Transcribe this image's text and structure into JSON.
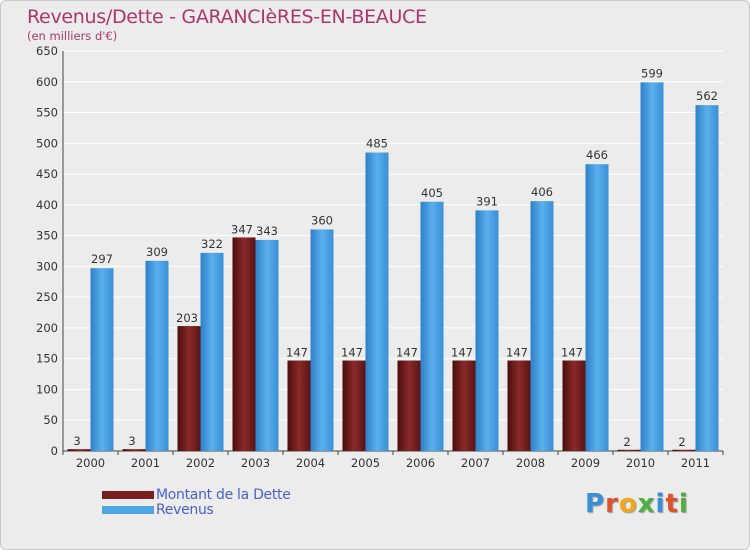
{
  "title": "Revenus/Dette - GARANCIèRES-EN-BEAUCE",
  "subtitle": "(en milliers d'€)",
  "logo": {
    "text": "Proxiti",
    "letter_colors": [
      "#3b8fd6",
      "#e0532a",
      "#f2a61a",
      "#4caf3e",
      "#3b8fd6",
      "#e0532a",
      "#4caf3e"
    ]
  },
  "colors": {
    "background": "#ececec",
    "debt": "#7a1f1f",
    "revenue": "#4fa6e6",
    "grid": "#ffffff",
    "axis": "#444444"
  },
  "chart_data": {
    "type": "bar",
    "title": "Revenus/Dette - GARANCIèRES-EN-BEAUCE",
    "subtitle": "(en milliers d'€)",
    "categories": [
      "2000",
      "2001",
      "2002",
      "2003",
      "2004",
      "2005",
      "2006",
      "2007",
      "2008",
      "2009",
      "2010",
      "2011"
    ],
    "series": [
      {
        "name": "Montant de la Dette",
        "color": "#7a1f1f",
        "values": [
          3,
          3,
          203,
          347,
          147,
          147,
          147,
          147,
          147,
          147,
          2,
          2
        ]
      },
      {
        "name": "Revenus",
        "color": "#4fa6e6",
        "values": [
          297,
          309,
          322,
          343,
          360,
          485,
          405,
          391,
          406,
          466,
          599,
          562
        ]
      }
    ],
    "ylim": [
      0,
      650
    ],
    "yticks": [
      0,
      50,
      100,
      150,
      200,
      250,
      300,
      350,
      400,
      450,
      500,
      550,
      600,
      650
    ],
    "grid": true,
    "legend": "bottom-left"
  }
}
